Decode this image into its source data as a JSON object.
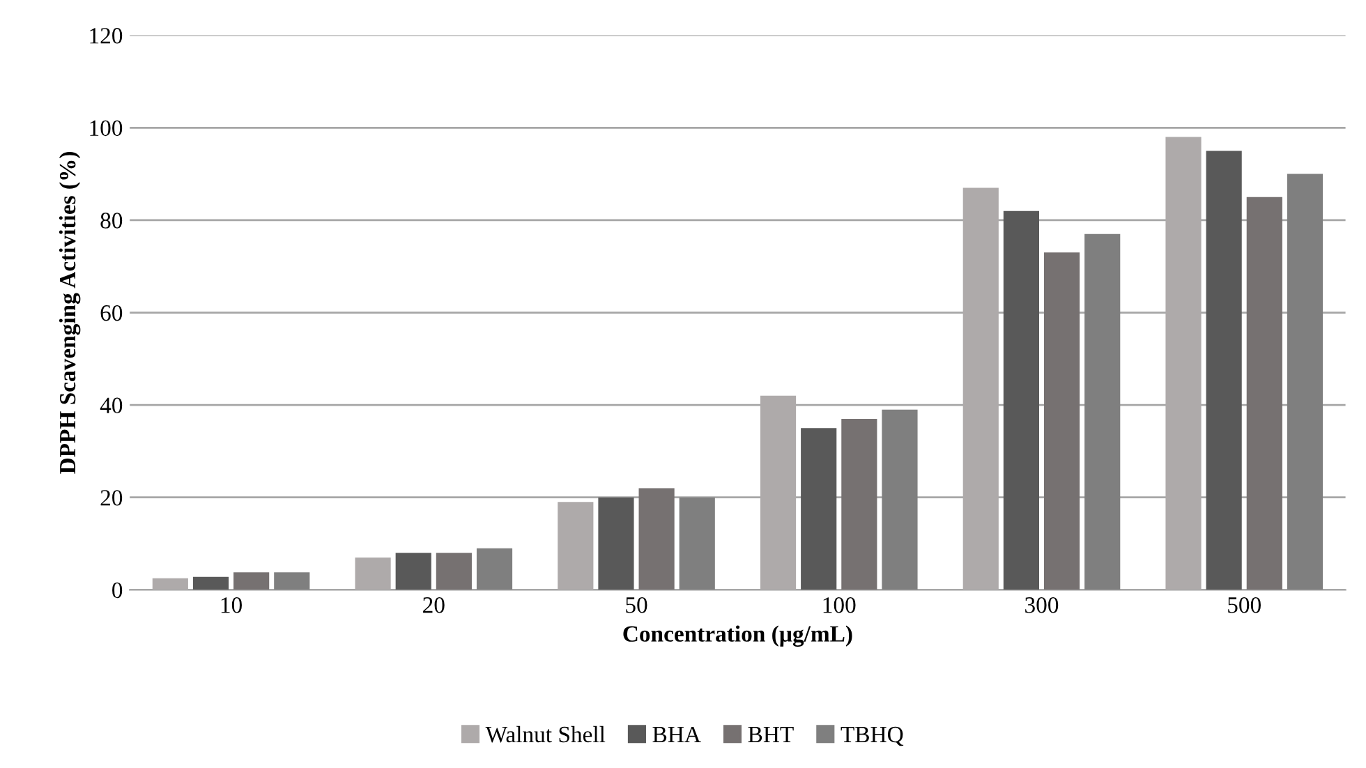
{
  "chart_data": {
    "type": "bar",
    "xlabel": "Concentration (µg/mL)",
    "ylabel": "DPPH Scavenging Activities (%)",
    "categories": [
      "10",
      "20",
      "50",
      "100",
      "300",
      "500"
    ],
    "series": [
      {
        "name": "Walnut Shell",
        "color": "#aeaaaa",
        "values": [
          2.5,
          7,
          19,
          42,
          87,
          98
        ]
      },
      {
        "name": "BHA",
        "color": "#595959",
        "values": [
          2.8,
          8,
          20,
          35,
          82,
          95
        ]
      },
      {
        "name": "BHT",
        "color": "#767171",
        "values": [
          3.8,
          8,
          22,
          37,
          73,
          85
        ]
      },
      {
        "name": "TBHQ",
        "color": "#7f7f7f",
        "values": [
          3.8,
          9,
          20,
          39,
          77,
          90
        ]
      }
    ],
    "ylim": [
      0,
      120
    ],
    "yticks": [
      0,
      20,
      40,
      60,
      80,
      100,
      120
    ],
    "grid": "y",
    "legend": "bottom"
  }
}
